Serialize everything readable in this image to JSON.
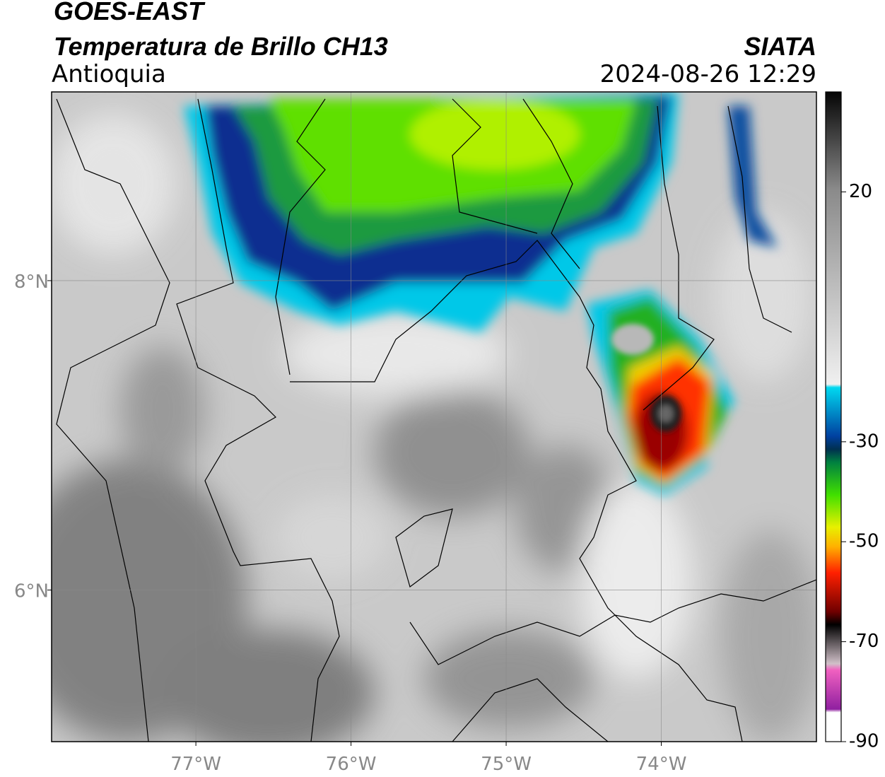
{
  "header": {
    "satellite": "GOES-EAST",
    "product": "Temperatura de Brillo CH13",
    "region": "Antioquia",
    "source": "SIATA",
    "datetime": "2024-08-26 12:29"
  },
  "map": {
    "lonlim": [
      -77.93,
      -73.0
    ],
    "latlim": [
      5.02,
      9.22
    ],
    "lonticks": [
      {
        "value": -77,
        "label": "77°W"
      },
      {
        "value": -76,
        "label": "76°W"
      },
      {
        "value": -75,
        "label": "75°W"
      },
      {
        "value": -74,
        "label": "74°W"
      }
    ],
    "latticks": [
      {
        "value": 8,
        "label": "8°N"
      },
      {
        "value": 6,
        "label": "6°N"
      }
    ],
    "grid": true
  },
  "colorbar": {
    "lim": [
      -90,
      40
    ],
    "ticks": [
      20,
      -30,
      -50,
      -70,
      -90
    ]
  }
}
